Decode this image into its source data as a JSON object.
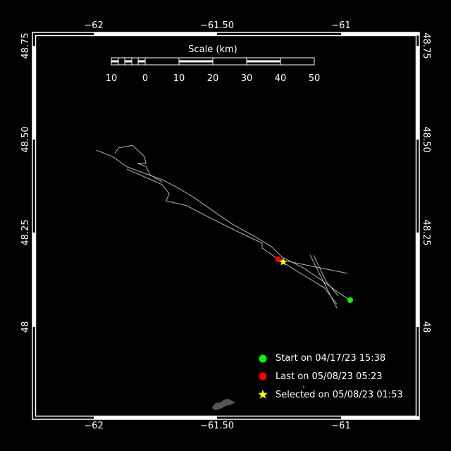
{
  "map": {
    "lon_ticks": [
      {
        "value": -62,
        "label": "−62"
      },
      {
        "value": -61.5,
        "label": "−61.50"
      },
      {
        "value": -61,
        "label": "−61"
      }
    ],
    "lat_ticks": [
      {
        "value": 48.75,
        "label": "48.75"
      },
      {
        "value": 48.5,
        "label": "48.50"
      },
      {
        "value": 48.25,
        "label": "48.25"
      },
      {
        "value": 48,
        "label": "48"
      }
    ],
    "background_color": "#000000",
    "track_color": "#b4b4b4",
    "land_color": "#555555"
  },
  "scale": {
    "title": "Scale (km)",
    "labels": [
      "10",
      "0",
      "10",
      "20",
      "30",
      "40",
      "50"
    ]
  },
  "tracks": [
    [
      [
        -61.989,
        48.468
      ],
      [
        -61.923,
        48.451
      ],
      [
        -61.866,
        48.424
      ],
      [
        -61.724,
        48.39
      ],
      [
        -61.667,
        48.371
      ],
      [
        -61.595,
        48.343
      ],
      [
        -61.524,
        48.31
      ],
      [
        -61.439,
        48.272
      ],
      [
        -61.353,
        48.241
      ],
      [
        -61.282,
        48.213
      ],
      [
        -61.239,
        48.185
      ],
      [
        -61.154,
        48.157
      ],
      [
        -61.068,
        48.119
      ],
      [
        -61.011,
        48.091
      ],
      [
        -60.963,
        48.071
      ]
    ],
    [
      [
        -61.915,
        48.459
      ],
      [
        -61.9,
        48.474
      ],
      [
        -61.843,
        48.481
      ],
      [
        -61.795,
        48.451
      ],
      [
        -61.789,
        48.433
      ],
      [
        -61.823,
        48.433
      ],
      [
        -61.789,
        48.425
      ],
      [
        -61.772,
        48.403
      ],
      [
        -61.724,
        48.384
      ]
    ],
    [
      [
        -61.866,
        48.418
      ],
      [
        -61.724,
        48.377
      ],
      [
        -61.695,
        48.353
      ],
      [
        -61.707,
        48.334
      ],
      [
        -61.624,
        48.321
      ],
      [
        -61.524,
        48.287
      ],
      [
        -61.41,
        48.25
      ],
      [
        -61.319,
        48.222
      ],
      [
        -61.319,
        48.209
      ],
      [
        -61.254,
        48.179
      ],
      [
        -61.154,
        48.138
      ],
      [
        -61.068,
        48.104
      ],
      [
        -61.017,
        48.06
      ]
    ],
    [
      [
        -61.254,
        48.179
      ],
      [
        -60.974,
        48.142
      ]
    ],
    [
      [
        -61.125,
        48.19
      ],
      [
        -61.017,
        48.05
      ]
    ],
    [
      [
        -61.111,
        48.19
      ],
      [
        -61.06,
        48.12
      ],
      [
        -61.011,
        48.082
      ]
    ]
  ],
  "markers": {
    "start": {
      "lon": -60.963,
      "lat": 48.071,
      "color": "#00ff00"
    },
    "last": {
      "lon": -61.254,
      "lat": 48.179,
      "color": "#ff0000"
    },
    "selected": {
      "lon": -61.234,
      "lat": 48.172,
      "color": "#ffff00"
    }
  },
  "legend": {
    "start": {
      "label": "Start on 04/17/23 15:38",
      "icon": "green-circle"
    },
    "last": {
      "label": "Last on 05/08/23 05:23",
      "icon": "red-circle"
    },
    "selected": {
      "label": "Selected on 05/08/23 01:53",
      "icon": "yellow-star"
    }
  }
}
